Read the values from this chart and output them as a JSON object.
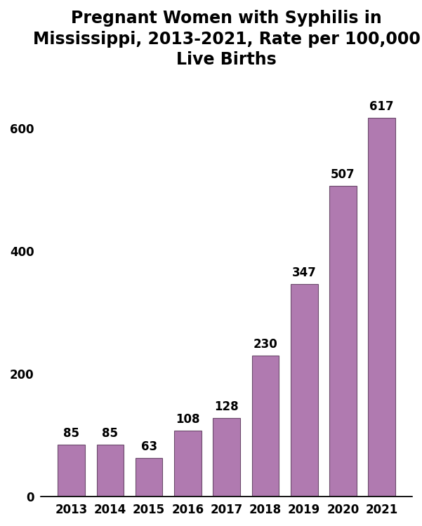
{
  "years": [
    "2013",
    "2014",
    "2015",
    "2016",
    "2017",
    "2018",
    "2019",
    "2020",
    "2021"
  ],
  "values": [
    85,
    85,
    63,
    108,
    128,
    230,
    347,
    507,
    617
  ],
  "bar_color": "#b07ab0",
  "bar_edgecolor": "#6b4a6b",
  "title": "Pregnant Women with Syphilis in\nMississippi, 2013-2021, Rate per 100,000\nLive Births",
  "title_fontsize": 17,
  "title_fontweight": "bold",
  "yticks": [
    0,
    200,
    400,
    600
  ],
  "ylim": [
    0,
    680
  ],
  "label_fontsize": 12,
  "tick_fontsize": 12,
  "background_color": "#ffffff"
}
